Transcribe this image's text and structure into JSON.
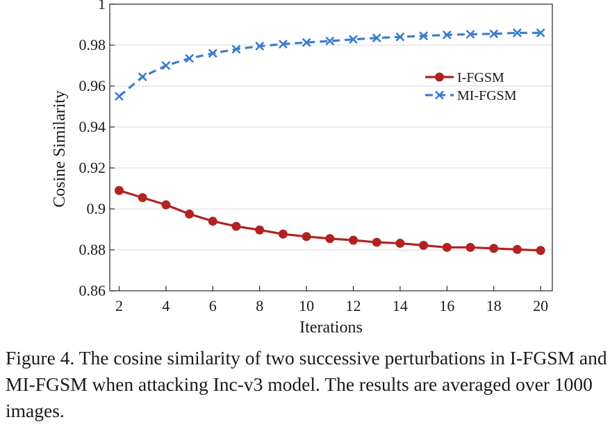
{
  "chart_data": {
    "type": "line",
    "xlabel": "Iterations",
    "ylabel": "Cosine Similarity",
    "xlim": [
      1.6,
      20.5
    ],
    "ylim": [
      0.86,
      1.0
    ],
    "x_ticks": [
      2,
      4,
      6,
      8,
      10,
      12,
      14,
      16,
      18,
      20
    ],
    "x_tick_labels": [
      "2",
      "4",
      "6",
      "8",
      "10",
      "12",
      "14",
      "16",
      "18",
      "20"
    ],
    "y_ticks": [
      0.86,
      0.88,
      0.9,
      0.92,
      0.94,
      0.96,
      0.98,
      1.0
    ],
    "y_tick_labels": [
      "0.86",
      "0.88",
      "0.9",
      "0.92",
      "0.94",
      "0.96",
      "0.98",
      "1"
    ],
    "grid": "horizontal",
    "legend_position": "top-right",
    "x": [
      2,
      3,
      4,
      5,
      6,
      7,
      8,
      9,
      10,
      11,
      12,
      13,
      14,
      15,
      16,
      17,
      18,
      19,
      20
    ],
    "series": [
      {
        "name": "I-FGSM",
        "color": "#b22222",
        "marker": "circle",
        "line_style": "solid",
        "values": [
          0.909,
          0.9055,
          0.902,
          0.8975,
          0.894,
          0.8915,
          0.8897,
          0.8877,
          0.8865,
          0.8855,
          0.8847,
          0.8837,
          0.8832,
          0.8822,
          0.8812,
          0.8812,
          0.8807,
          0.8802,
          0.8797
        ]
      },
      {
        "name": "MI-FGSM",
        "color": "#3b7dd0",
        "marker": "x",
        "line_style": "dashed",
        "values": [
          0.955,
          0.9645,
          0.97,
          0.9735,
          0.976,
          0.978,
          0.9795,
          0.9805,
          0.9813,
          0.982,
          0.9828,
          0.9835,
          0.984,
          0.9845,
          0.985,
          0.9853,
          0.9855,
          0.986,
          0.986
        ]
      }
    ]
  },
  "caption": "Figure 4. The cosine similarity of two successive perturbations in I-FGSM and MI-FGSM when attacking Inc-v3 model. The results are averaged over 1000 images."
}
